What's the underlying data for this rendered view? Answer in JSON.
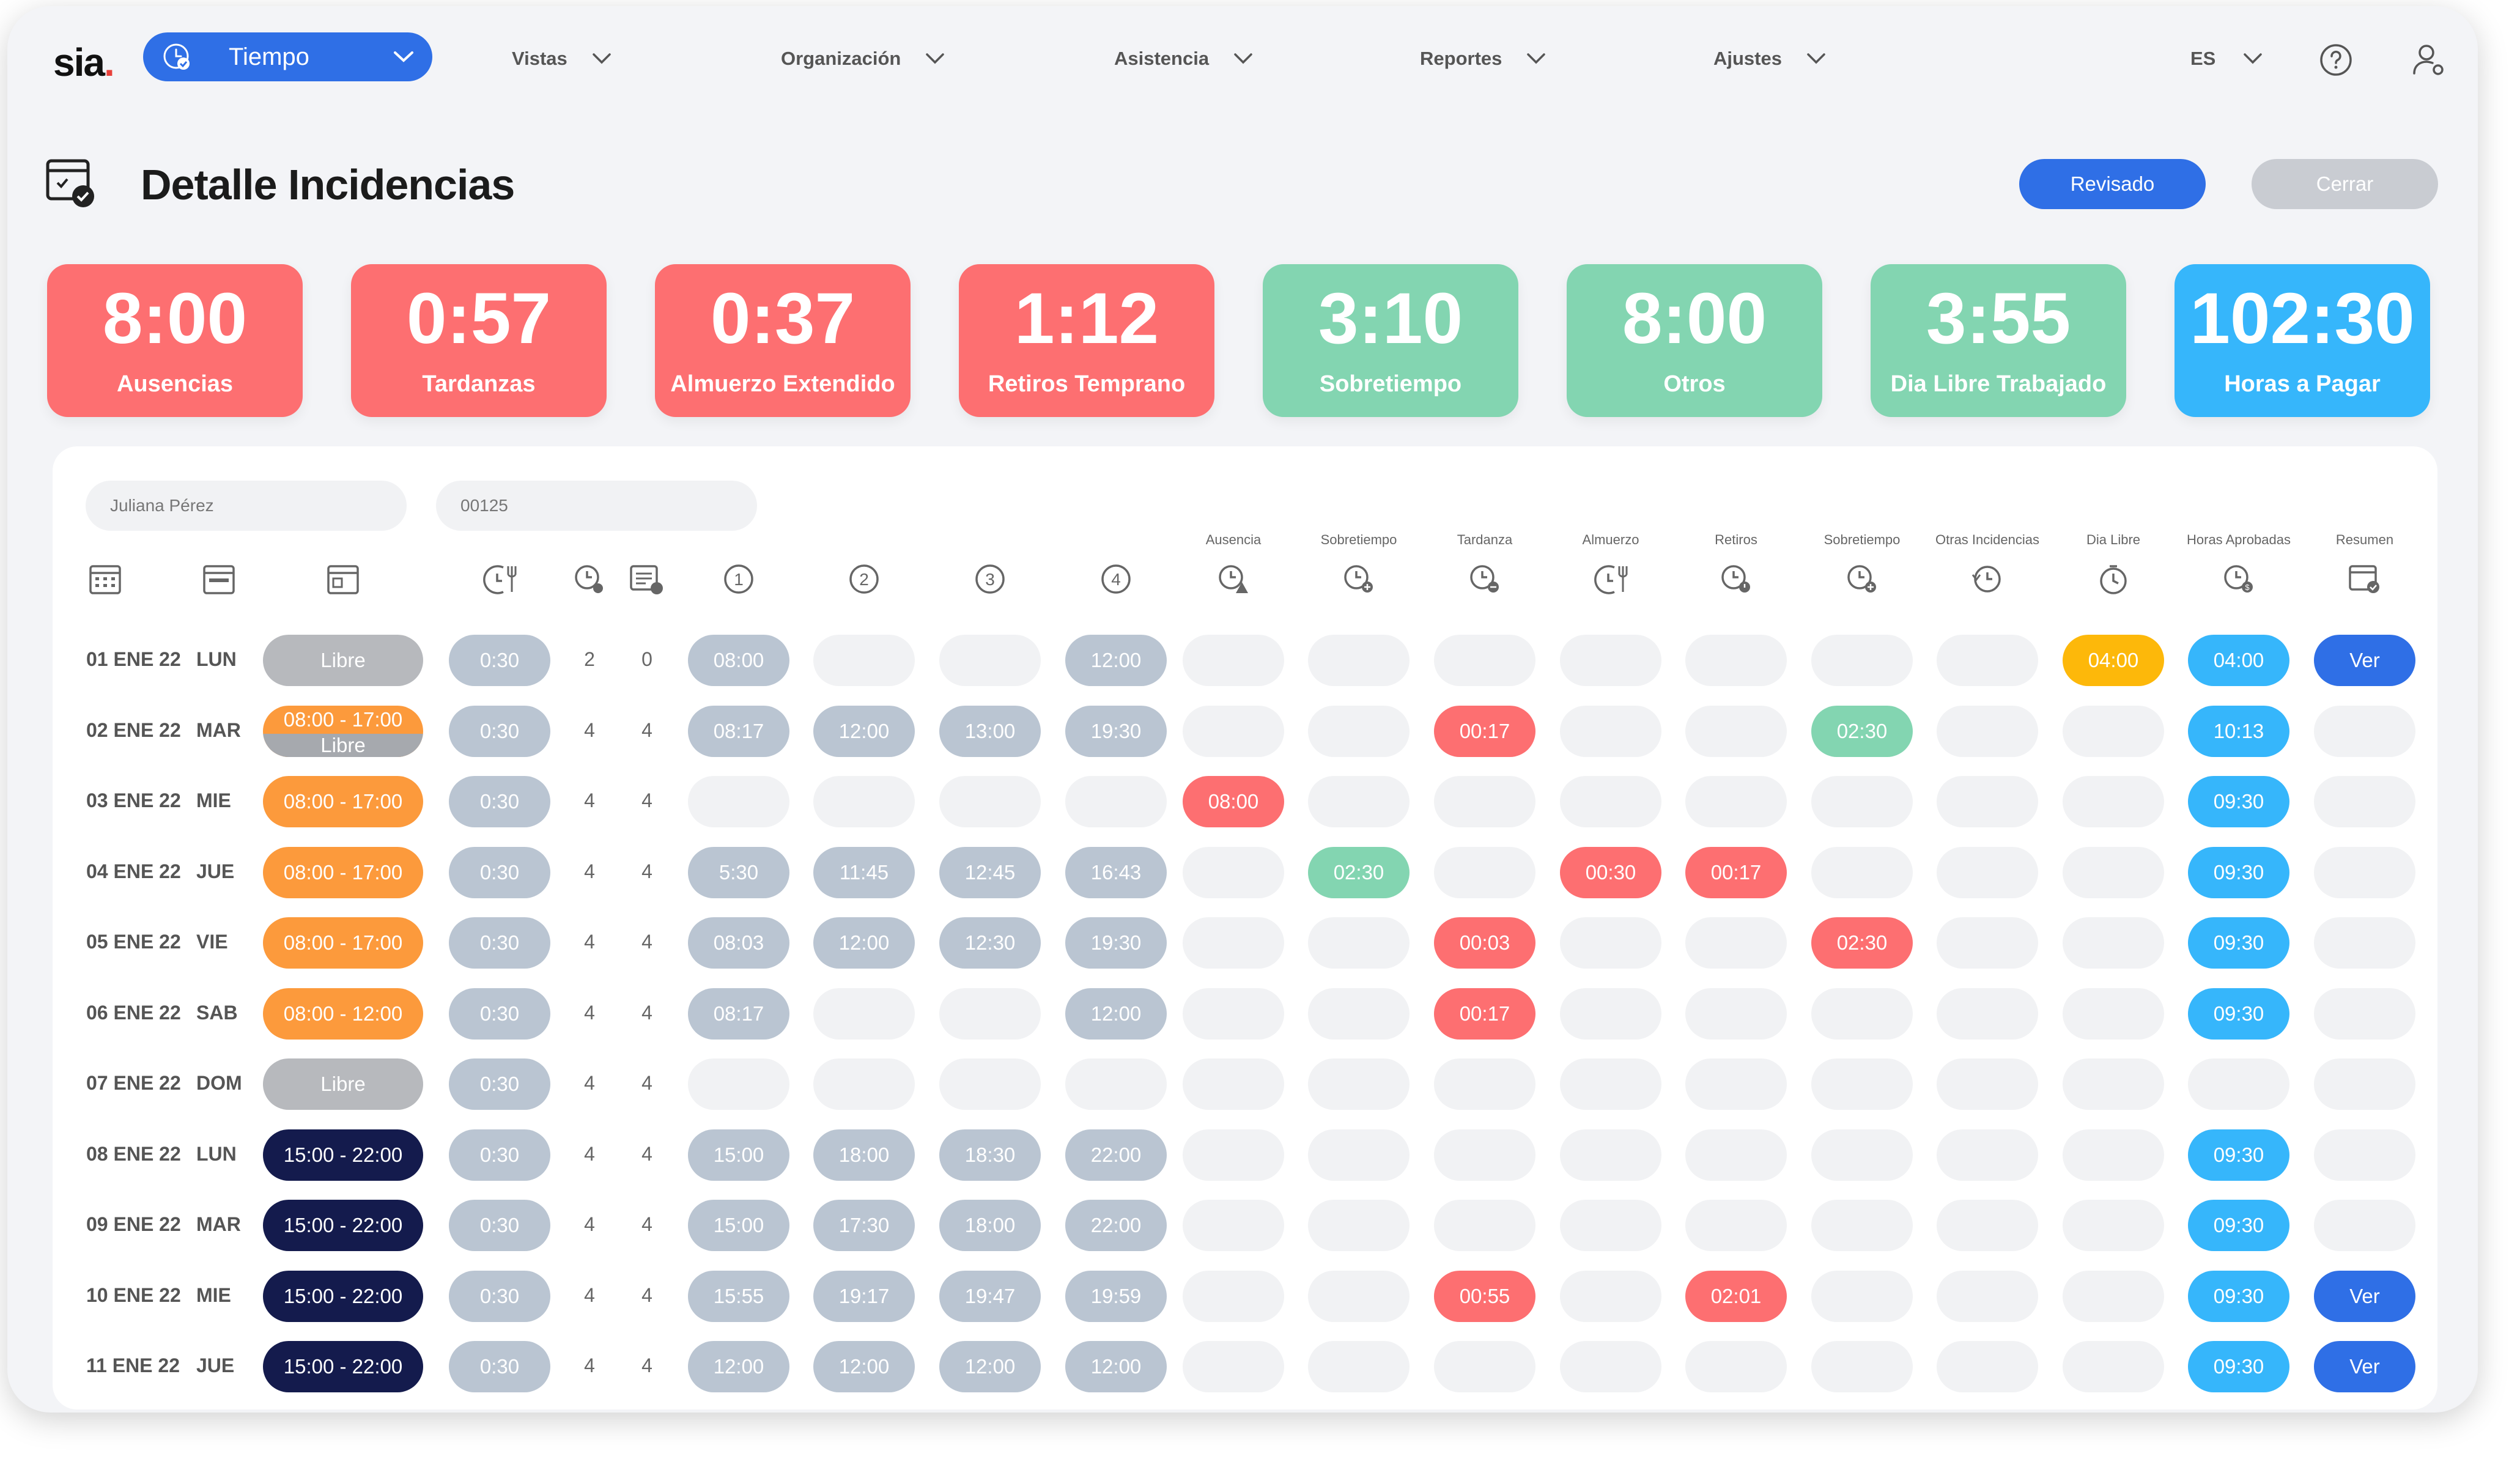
{
  "nav": {
    "logo": "sia",
    "module": "Tiempo",
    "items": [
      "Vistas",
      "Organización",
      "Asistencia",
      "Reportes",
      "Ajustes"
    ],
    "language": "ES"
  },
  "header": {
    "title": "Detalle Incidencias",
    "revisado_label": "Revisado",
    "cerrar_label": "Cerrar"
  },
  "summary_cards": [
    {
      "value": "8:00",
      "label": "Ausencias",
      "color": "#fd6f71"
    },
    {
      "value": "0:57",
      "label": "Tardanzas",
      "color": "#fd6f71"
    },
    {
      "value": "0:37",
      "label": "Almuerzo Extendido",
      "color": "#fd6f71"
    },
    {
      "value": "1:12",
      "label": "Retiros Temprano",
      "color": "#fd6f71"
    },
    {
      "value": "3:10",
      "label": "Sobretiempo",
      "color": "#83d5b1"
    },
    {
      "value": "8:00",
      "label": "Otros",
      "color": "#83d5b1"
    },
    {
      "value": "3:55",
      "label": "Dia Libre Trabajado",
      "color": "#83d5b1"
    },
    {
      "value": "102:30",
      "label": "Horas a Pagar",
      "color": "#36b6fb"
    }
  ],
  "filters": {
    "employee_name": "Juliana Pérez",
    "employee_code": "00125"
  },
  "incidence_headers": [
    "Ausencia",
    "Sobretiempo",
    "Tardanza",
    "Almuerzo",
    "Retiros",
    "Sobretiempo",
    "Otras Incidencias",
    "Dia Libre",
    "Horas Aprobadas",
    "Resumen"
  ],
  "colors": {
    "red": "#fd6f71",
    "green": "#83d5b1",
    "blue": "#36b6fb",
    "navy": "#141b4d",
    "orange": "#fc9a3c",
    "yellow": "#fdb80a",
    "gray_pill": "#bac5d2",
    "libre": "#b7b9bd",
    "ver": "#2f6fe6",
    "empty": "#f1f2f4"
  },
  "rows": [
    {
      "date": "01 ENE 22",
      "day": "LUN",
      "schedule": "Libre",
      "schedule_type": "libre",
      "lunch": "0:30",
      "n1": "2",
      "n2": "0",
      "marks": [
        "08:00",
        "",
        "",
        "12:00"
      ],
      "ausencia": "",
      "sobretiempo": "",
      "tardanza": "",
      "almuerzo": "",
      "retiros": "",
      "sobretiempo2": "",
      "otras": "",
      "dia_libre": "04:00",
      "horas": "04:00",
      "resumen": "Ver"
    },
    {
      "date": "02 ENE 22",
      "day": "MAR",
      "schedule": "08:00 - 17:00",
      "schedule_sub": "Libre",
      "schedule_type": "split",
      "lunch": "0:30",
      "n1": "4",
      "n2": "4",
      "marks": [
        "08:17",
        "12:00",
        "13:00",
        "19:30"
      ],
      "ausencia": "",
      "sobretiempo": "",
      "tardanza": "00:17",
      "almuerzo": "",
      "retiros": "",
      "sobretiempo2": "02:30",
      "otras": "",
      "dia_libre": "",
      "horas": "10:13",
      "resumen": ""
    },
    {
      "date": "03 ENE 22",
      "day": "MIE",
      "schedule": "08:00 - 17:00",
      "schedule_type": "orange",
      "lunch": "0:30",
      "n1": "4",
      "n2": "4",
      "marks": [
        "",
        "",
        "",
        ""
      ],
      "ausencia": "08:00",
      "sobretiempo": "",
      "tardanza": "",
      "almuerzo": "",
      "retiros": "",
      "sobretiempo2": "",
      "otras": "",
      "dia_libre": "",
      "horas": "09:30",
      "resumen": ""
    },
    {
      "date": "04 ENE 22",
      "day": "JUE",
      "schedule": "08:00 - 17:00",
      "schedule_type": "orange",
      "lunch": "0:30",
      "n1": "4",
      "n2": "4",
      "marks": [
        "5:30",
        "11:45",
        "12:45",
        "16:43"
      ],
      "ausencia": "",
      "sobretiempo": "02:30",
      "tardanza": "",
      "almuerzo": "00:30",
      "retiros": "00:17",
      "sobretiempo2": "",
      "otras": "",
      "dia_libre": "",
      "horas": "09:30",
      "resumen": ""
    },
    {
      "date": "05 ENE 22",
      "day": "VIE",
      "schedule": "08:00 - 17:00",
      "schedule_type": "orange",
      "lunch": "0:30",
      "n1": "4",
      "n2": "4",
      "marks": [
        "08:03",
        "12:00",
        "12:30",
        "19:30"
      ],
      "ausencia": "",
      "sobretiempo": "",
      "tardanza": "00:03",
      "almuerzo": "",
      "retiros": "",
      "sobretiempo2": "02:30",
      "sobretiempo2_red": true,
      "otras": "",
      "dia_libre": "",
      "horas": "09:30",
      "resumen": ""
    },
    {
      "date": "06 ENE 22",
      "day": "SAB",
      "schedule": "08:00 - 12:00",
      "schedule_type": "orange",
      "lunch": "0:30",
      "n1": "4",
      "n2": "4",
      "marks": [
        "08:17",
        "",
        "",
        "12:00"
      ],
      "ausencia": "",
      "sobretiempo": "",
      "tardanza": "00:17",
      "almuerzo": "",
      "retiros": "",
      "sobretiempo2": "",
      "otras": "",
      "dia_libre": "",
      "horas": "09:30",
      "resumen": ""
    },
    {
      "date": "07 ENE 22",
      "day": "DOM",
      "schedule": "Libre",
      "schedule_type": "libre",
      "lunch": "0:30",
      "n1": "4",
      "n2": "4",
      "marks": [
        "",
        "",
        "",
        ""
      ],
      "ausencia": "",
      "sobretiempo": "",
      "tardanza": "",
      "almuerzo": "",
      "retiros": "",
      "sobretiempo2": "",
      "otras": "",
      "dia_libre": "",
      "horas": "",
      "resumen": ""
    },
    {
      "date": "08 ENE 22",
      "day": "LUN",
      "schedule": "15:00 - 22:00",
      "schedule_type": "navy",
      "lunch": "0:30",
      "n1": "4",
      "n2": "4",
      "marks": [
        "15:00",
        "18:00",
        "18:30",
        "22:00"
      ],
      "ausencia": "",
      "sobretiempo": "",
      "tardanza": "",
      "almuerzo": "",
      "retiros": "",
      "sobretiempo2": "",
      "otras": "",
      "dia_libre": "",
      "horas": "09:30",
      "resumen": ""
    },
    {
      "date": "09 ENE 22",
      "day": "MAR",
      "schedule": "15:00 - 22:00",
      "schedule_type": "navy",
      "lunch": "0:30",
      "n1": "4",
      "n2": "4",
      "marks": [
        "15:00",
        "17:30",
        "18:00",
        "22:00"
      ],
      "ausencia": "",
      "sobretiempo": "",
      "tardanza": "",
      "almuerzo": "",
      "retiros": "",
      "sobretiempo2": "",
      "otras": "",
      "dia_libre": "",
      "horas": "09:30",
      "resumen": ""
    },
    {
      "date": "10 ENE 22",
      "day": "MIE",
      "schedule": "15:00 - 22:00",
      "schedule_type": "navy",
      "lunch": "0:30",
      "n1": "4",
      "n2": "4",
      "marks": [
        "15:55",
        "19:17",
        "19:47",
        "19:59"
      ],
      "ausencia": "",
      "sobretiempo": "",
      "tardanza": "00:55",
      "almuerzo": "",
      "retiros": "02:01",
      "sobretiempo2": "",
      "otras": "",
      "dia_libre": "",
      "horas": "09:30",
      "resumen": "Ver"
    },
    {
      "date": "11 ENE 22",
      "day": "JUE",
      "schedule": "15:00 - 22:00",
      "schedule_type": "navy",
      "lunch": "0:30",
      "n1": "4",
      "n2": "4",
      "marks": [
        "12:00",
        "12:00",
        "12:00",
        "12:00"
      ],
      "ausencia": "",
      "sobretiempo": "",
      "tardanza": "",
      "almuerzo": "",
      "retiros": "",
      "sobretiempo2": "",
      "otras": "",
      "dia_libre": "",
      "horas": "09:30",
      "resumen": "Ver"
    }
  ]
}
